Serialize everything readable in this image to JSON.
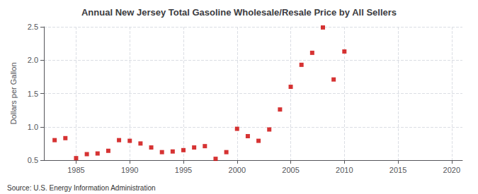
{
  "chart_data": {
    "type": "scatter",
    "title": "Annual New Jersey Total Gasoline Wholesale/Resale Price by All Sellers",
    "ylabel": "Dollars per Gallon",
    "annotations": [
      "Source: U.S. Energy Information Administration"
    ],
    "x": [
      1983,
      1984,
      1985,
      1986,
      1987,
      1988,
      1989,
      1990,
      1991,
      1992,
      1993,
      1994,
      1995,
      1996,
      1997,
      1998,
      1999,
      2000,
      2001,
      2002,
      2003,
      2004,
      2005,
      2006,
      2007,
      2008,
      2009,
      2010
    ],
    "values": [
      0.8,
      0.83,
      0.53,
      0.59,
      0.6,
      0.64,
      0.8,
      0.79,
      0.75,
      0.69,
      0.62,
      0.63,
      0.65,
      0.69,
      0.71,
      0.52,
      0.62,
      0.97,
      0.86,
      0.79,
      0.96,
      1.26,
      1.6,
      1.93,
      2.11,
      2.49,
      1.71,
      2.13
    ],
    "color": "#cc0000",
    "marker": "square",
    "xlim": [
      1982,
      2021
    ],
    "xticks": [
      1985,
      1990,
      1995,
      2000,
      2005,
      2010,
      2015,
      2020
    ],
    "ylim": [
      0.5,
      2.5
    ],
    "yticks": [
      0.5,
      {
        "value": 1.0,
        "label": "1.0"
      },
      1.5,
      {
        "value": 2.0,
        "label": "2.0"
      },
      2.5
    ],
    "grid": true
  }
}
